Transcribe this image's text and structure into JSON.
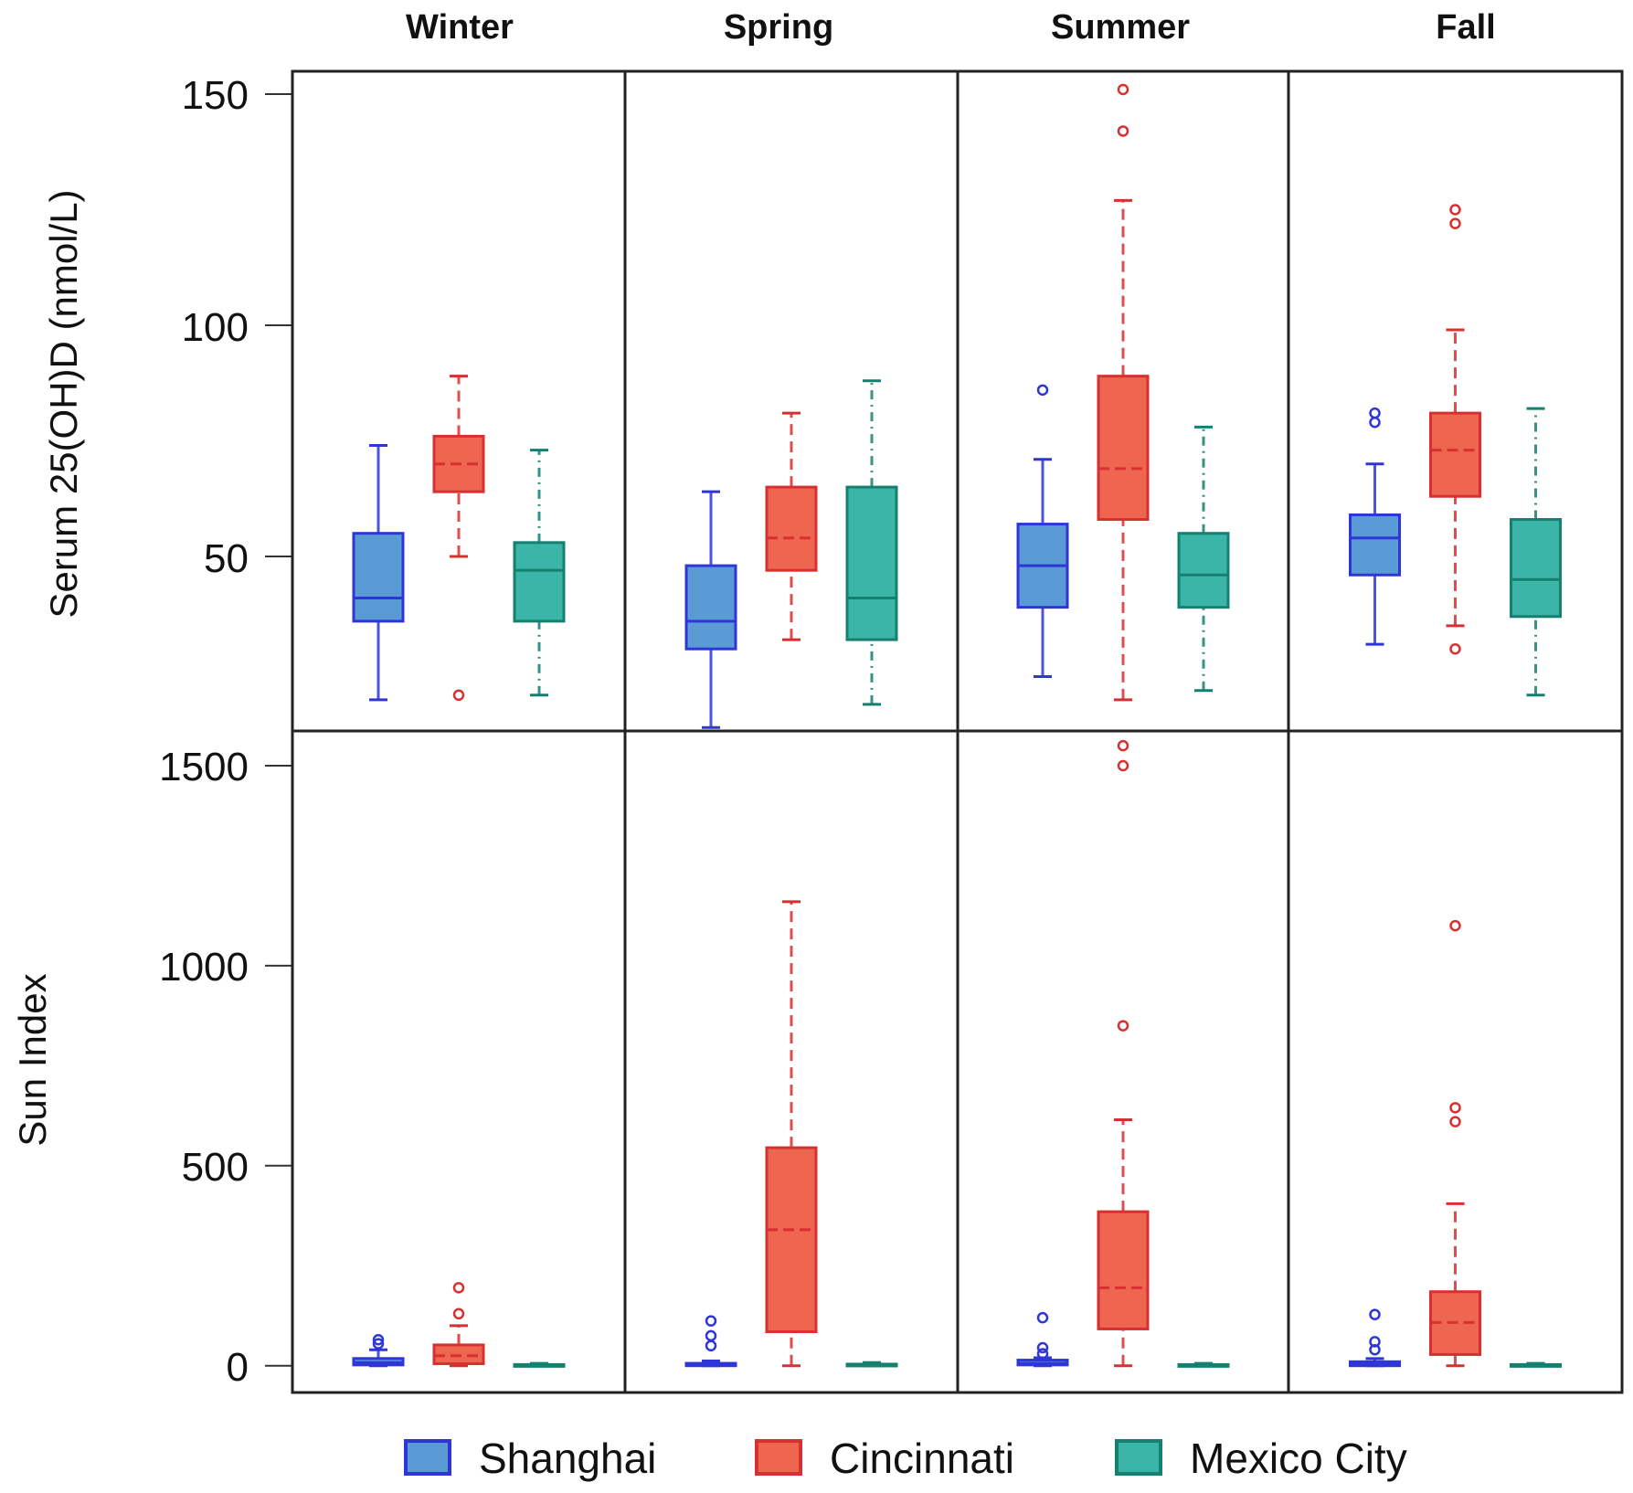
{
  "chart_data": {
    "type": "boxplot",
    "layout": "2 rows x 4 columns faceted box plots",
    "seasons": [
      "Winter",
      "Spring",
      "Summer",
      "Fall"
    ],
    "legend": [
      {
        "name": "Shanghai",
        "color": "#5b9bd5",
        "stroke": "#2f36d8"
      },
      {
        "name": "Cincinnati",
        "color": "#ee6650",
        "stroke": "#d83030"
      },
      {
        "name": "Mexico City",
        "color": "#3ab5a8",
        "stroke": "#15806f"
      }
    ],
    "panels": [
      {
        "ylabel": "Serum 25(OH)D (nmol/L)",
        "ylim": [
          13,
          155
        ],
        "yticks": [
          150,
          100,
          50
        ],
        "ytick_labels": [
          "150",
          "100",
          "50"
        ],
        "data": {
          "Winter": [
            {
              "city": "Shanghai",
              "min": 19,
              "q1": 36,
              "median": 41,
              "q3": 55,
              "max": 74,
              "outliers": []
            },
            {
              "city": "Cincinnati",
              "min": 50,
              "q1": 64,
              "median": 70,
              "q3": 76,
              "max": 89,
              "outliers": [
                20
              ]
            },
            {
              "city": "Mexico City",
              "min": 20,
              "q1": 36,
              "median": 47,
              "q3": 53,
              "max": 73,
              "outliers": []
            }
          ],
          "Spring": [
            {
              "city": "Shanghai",
              "min": 13,
              "q1": 30,
              "median": 36,
              "q3": 48,
              "max": 64,
              "outliers": []
            },
            {
              "city": "Cincinnati",
              "min": 32,
              "q1": 47,
              "median": 54,
              "q3": 65,
              "max": 81,
              "outliers": []
            },
            {
              "city": "Mexico City",
              "min": 18,
              "q1": 32,
              "median": 41,
              "q3": 65,
              "max": 88,
              "outliers": []
            }
          ],
          "Summer": [
            {
              "city": "Shanghai",
              "min": 24,
              "q1": 39,
              "median": 48,
              "q3": 57,
              "max": 71,
              "outliers": [
                86
              ]
            },
            {
              "city": "Cincinnati",
              "min": 19,
              "q1": 58,
              "median": 69,
              "q3": 89,
              "max": 127,
              "outliers": [
                142,
                151
              ]
            },
            {
              "city": "Mexico City",
              "min": 21,
              "q1": 39,
              "median": 46,
              "q3": 55,
              "max": 78,
              "outliers": []
            }
          ],
          "Fall": [
            {
              "city": "Shanghai",
              "min": 31,
              "q1": 46,
              "median": 54,
              "q3": 59,
              "max": 70,
              "outliers": [
                79,
                81
              ]
            },
            {
              "city": "Cincinnati",
              "min": 35,
              "q1": 63,
              "median": 73,
              "q3": 81,
              "max": 99,
              "outliers": [
                30,
                122,
                125
              ]
            },
            {
              "city": "Mexico City",
              "min": 20,
              "q1": 37,
              "median": 45,
              "q3": 58,
              "max": 82,
              "outliers": []
            }
          ]
        }
      },
      {
        "ylabel": "Sun Index",
        "ylim": [
          -60,
          1560
        ],
        "yticks": [
          1500,
          1000,
          500,
          0
        ],
        "ytick_labels": [
          "1500",
          "1000",
          "500",
          "0"
        ],
        "data": {
          "Winter": [
            {
              "city": "Shanghai",
              "min": 0,
              "q1": 2,
              "median": 8,
              "q3": 18,
              "max": 40,
              "outliers": [
                55,
                65
              ]
            },
            {
              "city": "Cincinnati",
              "min": 0,
              "q1": 5,
              "median": 25,
              "q3": 52,
              "max": 100,
              "outliers": [
                130,
                195
              ]
            },
            {
              "city": "Mexico City",
              "min": 0,
              "q1": 0,
              "median": 1,
              "q3": 3,
              "max": 6,
              "outliers": []
            }
          ],
          "Spring": [
            {
              "city": "Shanghai",
              "min": 0,
              "q1": 0,
              "median": 2,
              "q3": 6,
              "max": 12,
              "outliers": [
                50,
                75,
                112
              ]
            },
            {
              "city": "Cincinnati",
              "min": 0,
              "q1": 85,
              "median": 340,
              "q3": 545,
              "max": 1160,
              "outliers": []
            },
            {
              "city": "Mexico City",
              "min": 0,
              "q1": 0,
              "median": 1,
              "q3": 4,
              "max": 8,
              "outliers": []
            }
          ],
          "Summer": [
            {
              "city": "Shanghai",
              "min": 0,
              "q1": 2,
              "median": 6,
              "q3": 14,
              "max": 20,
              "outliers": [
                30,
                45,
                120
              ]
            },
            {
              "city": "Cincinnati",
              "min": 0,
              "q1": 92,
              "median": 195,
              "q3": 385,
              "max": 615,
              "outliers": [
                850,
                1500,
                1550
              ]
            },
            {
              "city": "Mexico City",
              "min": 0,
              "q1": 0,
              "median": 1,
              "q3": 3,
              "max": 6,
              "outliers": []
            }
          ],
          "Fall": [
            {
              "city": "Shanghai",
              "min": 0,
              "q1": 0,
              "median": 4,
              "q3": 10,
              "max": 18,
              "outliers": [
                40,
                60,
                128
              ]
            },
            {
              "city": "Cincinnati",
              "min": 0,
              "q1": 28,
              "median": 108,
              "q3": 185,
              "max": 405,
              "outliers": [
                610,
                645,
                1100
              ]
            },
            {
              "city": "Mexico City",
              "min": 0,
              "q1": 0,
              "median": 1,
              "q3": 3,
              "max": 6,
              "outliers": []
            }
          ]
        }
      }
    ]
  }
}
